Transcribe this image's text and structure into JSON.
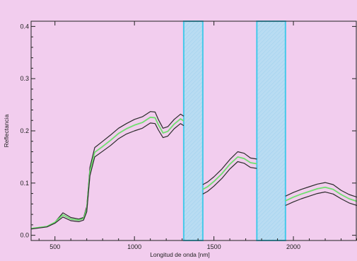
{
  "chart_data": {
    "type": "line",
    "title": "",
    "xlabel": "Longitud de onda [nm]",
    "ylabel": "Reflectancia",
    "xlim": [
      350,
      2400
    ],
    "ylim": [
      -0.01,
      0.41
    ],
    "xticks": [
      500,
      1000,
      1500,
      2000
    ],
    "xtick_labels": [
      "500",
      "1000",
      "1500",
      "2000"
    ],
    "yticks": [
      0.0,
      0.1,
      0.2,
      0.3,
      0.4
    ],
    "ytick_labels": [
      "0.0",
      "0.1",
      "0.2",
      "0.3",
      "0.4"
    ],
    "grid": false,
    "excluded_bands": [
      {
        "x0": 1310,
        "x1": 1430
      },
      {
        "x0": 1770,
        "x1": 1950
      }
    ],
    "series": [
      {
        "color": "#2b2b2b",
        "segments": [
          [
            [
              350,
              0.013
            ],
            [
              450,
              0.017
            ],
            [
              500,
              0.025
            ],
            [
              550,
              0.043
            ],
            [
              600,
              0.034
            ],
            [
              650,
              0.031
            ],
            [
              680,
              0.034
            ],
            [
              700,
              0.055
            ],
            [
              720,
              0.13
            ],
            [
              750,
              0.168
            ],
            [
              800,
              0.18
            ],
            [
              850,
              0.192
            ],
            [
              900,
              0.205
            ],
            [
              950,
              0.214
            ],
            [
              1000,
              0.222
            ],
            [
              1050,
              0.227
            ],
            [
              1100,
              0.237
            ],
            [
              1130,
              0.236
            ],
            [
              1150,
              0.222
            ],
            [
              1180,
              0.205
            ],
            [
              1210,
              0.208
            ],
            [
              1250,
              0.222
            ],
            [
              1290,
              0.232
            ],
            [
              1310,
              0.228
            ]
          ],
          [
            [
              1430,
              0.097
            ],
            [
              1460,
              0.102
            ],
            [
              1500,
              0.112
            ],
            [
              1550,
              0.127
            ],
            [
              1600,
              0.145
            ],
            [
              1650,
              0.16
            ],
            [
              1690,
              0.157
            ],
            [
              1730,
              0.148
            ],
            [
              1770,
              0.146
            ]
          ],
          [
            [
              1950,
              0.075
            ],
            [
              2000,
              0.082
            ],
            [
              2050,
              0.088
            ],
            [
              2100,
              0.093
            ],
            [
              2150,
              0.098
            ],
            [
              2200,
              0.101
            ],
            [
              2250,
              0.097
            ],
            [
              2300,
              0.086
            ],
            [
              2350,
              0.078
            ],
            [
              2400,
              0.073
            ]
          ]
        ]
      },
      {
        "color": "#6fe06f",
        "segments": [
          [
            [
              350,
              0.013
            ],
            [
              450,
              0.017
            ],
            [
              500,
              0.025
            ],
            [
              550,
              0.039
            ],
            [
              600,
              0.031
            ],
            [
              650,
              0.029
            ],
            [
              680,
              0.032
            ],
            [
              700,
              0.05
            ],
            [
              720,
              0.122
            ],
            [
              750,
              0.159
            ],
            [
              800,
              0.17
            ],
            [
              850,
              0.182
            ],
            [
              900,
              0.195
            ],
            [
              950,
              0.204
            ],
            [
              1000,
              0.211
            ],
            [
              1050,
              0.216
            ],
            [
              1100,
              0.226
            ],
            [
              1130,
              0.225
            ],
            [
              1150,
              0.212
            ],
            [
              1180,
              0.196
            ],
            [
              1210,
              0.199
            ],
            [
              1250,
              0.213
            ],
            [
              1290,
              0.223
            ],
            [
              1310,
              0.219
            ]
          ],
          [
            [
              1430,
              0.088
            ],
            [
              1460,
              0.093
            ],
            [
              1500,
              0.103
            ],
            [
              1550,
              0.118
            ],
            [
              1600,
              0.136
            ],
            [
              1650,
              0.15
            ],
            [
              1690,
              0.147
            ],
            [
              1730,
              0.139
            ],
            [
              1770,
              0.137
            ]
          ],
          [
            [
              1950,
              0.066
            ],
            [
              2000,
              0.073
            ],
            [
              2050,
              0.079
            ],
            [
              2100,
              0.084
            ],
            [
              2150,
              0.089
            ],
            [
              2200,
              0.092
            ],
            [
              2250,
              0.088
            ],
            [
              2300,
              0.078
            ],
            [
              2350,
              0.07
            ],
            [
              2400,
              0.065
            ]
          ]
        ]
      },
      {
        "color": "#2b2b2b",
        "segments": [
          [
            [
              350,
              0.012
            ],
            [
              450,
              0.016
            ],
            [
              500,
              0.023
            ],
            [
              550,
              0.035
            ],
            [
              600,
              0.028
            ],
            [
              650,
              0.026
            ],
            [
              680,
              0.029
            ],
            [
              700,
              0.045
            ],
            [
              720,
              0.114
            ],
            [
              750,
              0.15
            ],
            [
              800,
              0.161
            ],
            [
              850,
              0.172
            ],
            [
              900,
              0.185
            ],
            [
              950,
              0.194
            ],
            [
              1000,
              0.2
            ],
            [
              1050,
              0.205
            ],
            [
              1100,
              0.215
            ],
            [
              1130,
              0.214
            ],
            [
              1150,
              0.202
            ],
            [
              1180,
              0.187
            ],
            [
              1210,
              0.19
            ],
            [
              1250,
              0.204
            ],
            [
              1290,
              0.214
            ],
            [
              1310,
              0.21
            ]
          ],
          [
            [
              1430,
              0.079
            ],
            [
              1460,
              0.084
            ],
            [
              1500,
              0.094
            ],
            [
              1550,
              0.109
            ],
            [
              1600,
              0.127
            ],
            [
              1650,
              0.141
            ],
            [
              1690,
              0.138
            ],
            [
              1730,
              0.13
            ],
            [
              1770,
              0.128
            ]
          ],
          [
            [
              1950,
              0.057
            ],
            [
              2000,
              0.064
            ],
            [
              2050,
              0.07
            ],
            [
              2100,
              0.075
            ],
            [
              2150,
              0.08
            ],
            [
              2200,
              0.083
            ],
            [
              2250,
              0.079
            ],
            [
              2300,
              0.07
            ],
            [
              2350,
              0.062
            ],
            [
              2400,
              0.057
            ]
          ]
        ]
      }
    ],
    "colors": {
      "background": "#f2cdee",
      "band_fill": "#b9dcf2",
      "band_stroke": "#44c9ea"
    }
  }
}
